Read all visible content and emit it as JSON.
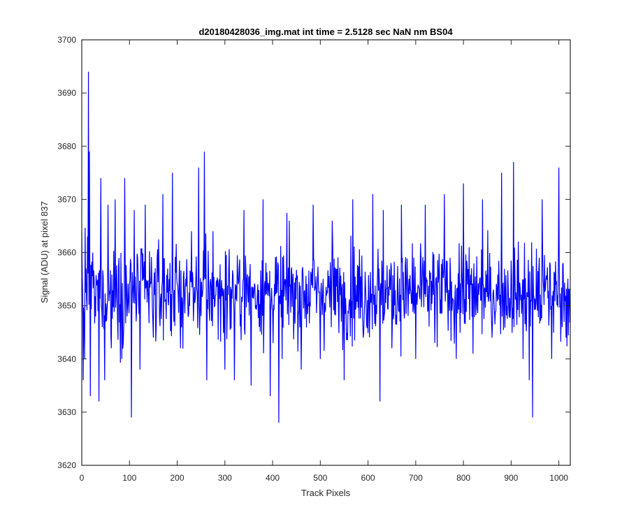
{
  "chart_data": {
    "type": "line",
    "title": "d20180428036_img.mat int time = 2.5128 sec  NaN nm BS04",
    "xlabel": "Track Pixels",
    "ylabel": "Signal (ADU) at pixel 837",
    "xlim": [
      0,
      1024
    ],
    "ylim": [
      3620,
      3700
    ],
    "xticks": [
      "0",
      "100",
      "200",
      "300",
      "400",
      "500",
      "600",
      "700",
      "800",
      "900",
      "1000"
    ],
    "yticks": [
      "3620",
      "3630",
      "3640",
      "3650",
      "3660",
      "3670",
      "3680",
      "3690",
      "3700"
    ],
    "grid": false,
    "line_color": "#0000ff",
    "series": [
      {
        "points_note_count": 1024,
        "mean": 3652.5,
        "noise_sd": 6.0,
        "x": [
          0,
          3,
          6,
          9,
          12,
          14,
          16,
          18,
          23,
          29,
          36,
          40,
          43,
          48,
          55,
          62,
          70,
          78,
          84,
          90,
          95,
          104,
          110,
          122,
          133,
          150,
          170,
          180,
          190,
          207,
          230,
          245,
          257,
          262,
          275,
          300,
          320,
          340,
          355,
          380,
          395,
          413,
          420,
          435,
          460,
          485,
          500,
          525,
          550,
          568,
          590,
          610,
          625,
          632,
          650,
          670,
          700,
          720,
          740,
          760,
          785,
          800,
          820,
          840,
          860,
          880,
          905,
          925,
          938,
          945,
          965,
          985,
          1000,
          1015,
          1024
        ],
        "y": [
          3664,
          3636,
          3640,
          3657,
          3663,
          3694,
          3679,
          3633,
          3660,
          3648,
          3632,
          3674,
          3646,
          3636,
          3669,
          3642,
          3670,
          3659,
          3640,
          3674,
          3648,
          3629,
          3668,
          3638,
          3669,
          3644,
          3671,
          3657,
          3675,
          3642,
          3664,
          3676,
          3679,
          3636,
          3664,
          3638,
          3636,
          3668,
          3635,
          3670,
          3633,
          3628,
          3640,
          3666,
          3638,
          3669,
          3640,
          3666,
          3636,
          3670,
          3644,
          3671,
          3632,
          3668,
          3642,
          3669,
          3640,
          3669,
          3643,
          3671,
          3640,
          3673,
          3641,
          3670,
          3644,
          3675,
          3677,
          3640,
          3636,
          3629,
          3670,
          3640,
          3676,
          3644,
          3670
        ]
      }
    ]
  }
}
